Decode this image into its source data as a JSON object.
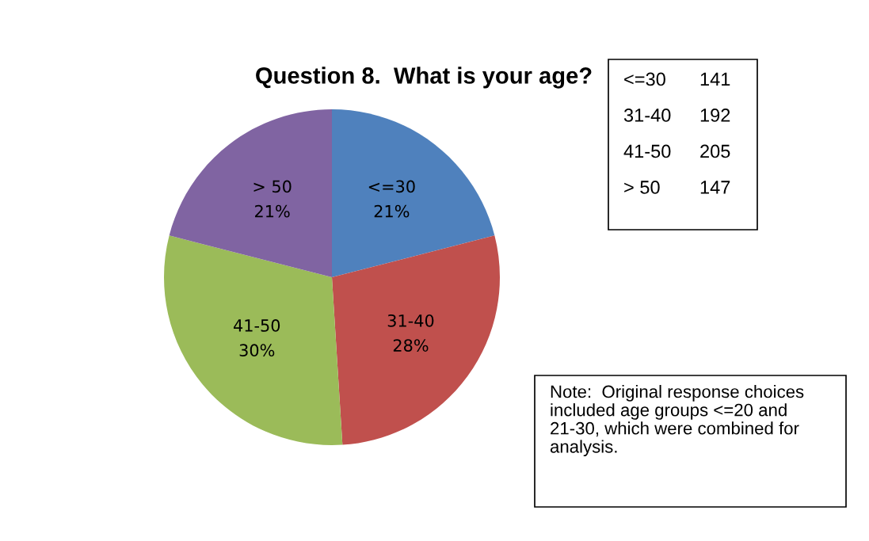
{
  "chart_data": [
    {
      "type": "pie",
      "title": "Question 8.  What is your age?",
      "categories": [
        "<=30",
        "31-40",
        "41-50",
        "> 50"
      ],
      "values": [
        21,
        28,
        30,
        21
      ],
      "value_labels": [
        "21%",
        "28%",
        "30%",
        "21%"
      ],
      "colors": [
        "#4f81bd",
        "#c0504d",
        "#9bbb59",
        "#8064a2"
      ],
      "annotations": [
        "Note:  Original response choices included age groups <=20 and 21-30, which were combined for analysis."
      ]
    },
    {
      "type": "other",
      "categories": [
        "<=30",
        "31-40",
        "41-50",
        "> 50"
      ],
      "values": [
        141,
        192,
        205,
        147
      ],
      "data_labels": true
    }
  ]
}
